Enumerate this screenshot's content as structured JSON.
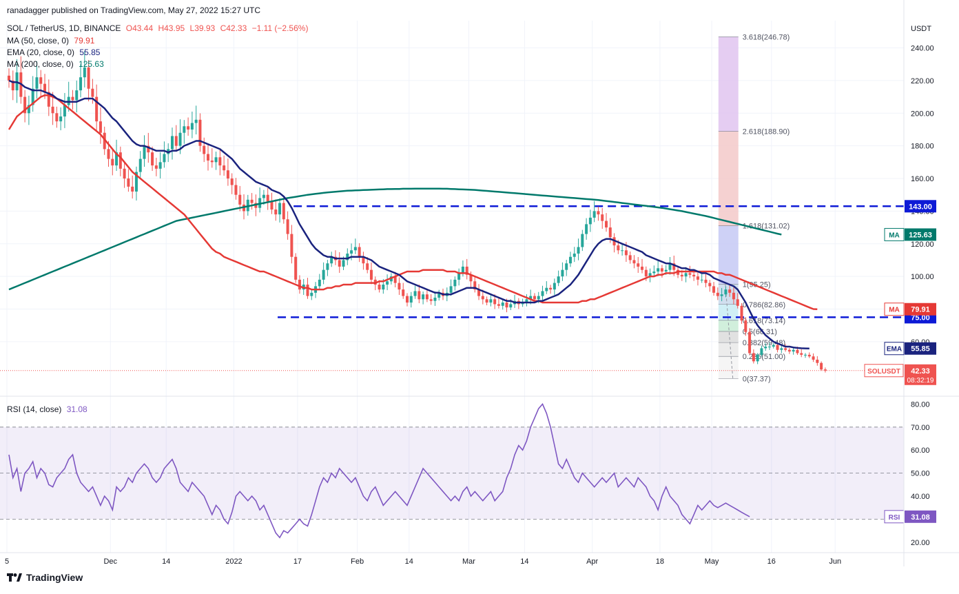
{
  "header": {
    "publisher": "ranadagger published on TradingView.com, May 27, 2022 15:27 UTC",
    "symbol_line": "SOL / TetherUS, 1D, BINANCE",
    "ohlc": {
      "o": "O43.44",
      "h": "H43.95",
      "l": "L39.93",
      "c": "C42.33",
      "chg": "−1.11 (−2.56%)"
    }
  },
  "legends": [
    {
      "label": "MA (50, close, 0)",
      "value": "79.91",
      "color": "#e53935"
    },
    {
      "label": "EMA (20, close, 0)",
      "value": "55.85",
      "color": "#1a237e"
    },
    {
      "label": "MA (200, close, 0)",
      "value": "125.63",
      "color": "#00796b"
    }
  ],
  "rsi_legend": {
    "label": "RSI (14, close)",
    "value": "31.08",
    "color": "#7e57c2"
  },
  "brand": "TradingView",
  "colors": {
    "up": "#26a69a",
    "down": "#ef5350",
    "ma50": "#e53935",
    "ema20": "#1a237e",
    "ma200": "#00796b",
    "rsi": "#7e57c2",
    "level": "#0d1ad6"
  },
  "chart_data": {
    "type": "candlestick",
    "currency": "USDT",
    "y_ticks": [
      60,
      80,
      100,
      120,
      140,
      160,
      180,
      200,
      220,
      240
    ],
    "y_tick_labels": [
      "60.00",
      "80.00",
      "100.00",
      "120.00",
      "140.00",
      "160.00",
      "180.00",
      "200.00",
      "220.00",
      "240.00"
    ],
    "x_ticks": [
      {
        "d": 0,
        "label": "5"
      },
      {
        "d": 26,
        "label": "Dec"
      },
      {
        "d": 40,
        "label": "14"
      },
      {
        "d": 57,
        "label": "2022"
      },
      {
        "d": 73,
        "label": "17"
      },
      {
        "d": 88,
        "label": "Feb"
      },
      {
        "d": 101,
        "label": "14"
      },
      {
        "d": 116,
        "label": "Mar"
      },
      {
        "d": 130,
        "label": "14"
      },
      {
        "d": 147,
        "label": "Apr"
      },
      {
        "d": 164,
        "label": "18"
      },
      {
        "d": 177,
        "label": "May"
      },
      {
        "d": 192,
        "label": "16"
      },
      {
        "d": 208,
        "label": "Jun"
      }
    ],
    "horizontal_levels": [
      {
        "value": 143.0,
        "label": "143.00",
        "from_day": 72
      },
      {
        "value": 75.0,
        "label": "75.00",
        "from_day": 68
      }
    ],
    "indicator_tags": [
      {
        "name": "MA",
        "value": 125.63,
        "label": "125.63"
      },
      {
        "name": "MA",
        "value": 79.91,
        "label": "79.91"
      },
      {
        "name": "EMA",
        "value": 55.85,
        "label": "55.85"
      }
    ],
    "last_price": {
      "symbol": "SOLUSDT",
      "value": 42.33,
      "label": "42.33",
      "countdown": "08:32:19"
    },
    "fibonacci": [
      {
        "label": "3.618(246.78)",
        "value": 246.78,
        "fill": "#e1c4f0"
      },
      {
        "label": "2.618(188.90)",
        "value": 188.9,
        "fill": "#f3c9c9"
      },
      {
        "label": "1.618(131.02)",
        "value": 131.02,
        "fill": "#c5c9f5"
      },
      {
        "label": "1(95.25)",
        "value": 95.25,
        "fill": "#c9d9ec"
      },
      {
        "label": "0.786(82.86)",
        "value": 82.86,
        "fill": "#c8ecf5"
      },
      {
        "label": "0.618(73.14)",
        "value": 73.14,
        "fill": "#c9ecd6"
      },
      {
        "label": "0.5(66.31)",
        "value": 66.31,
        "fill": "#dcdcdc"
      },
      {
        "label": "0.382(59.48)",
        "value": 59.48,
        "fill": "#e9e9e9"
      },
      {
        "label": "0.236(51.00)",
        "value": 51.0,
        "fill": "#f3f3f3"
      },
      {
        "label": "0(37.37)",
        "value": 37.37,
        "fill": "#ffffff"
      }
    ],
    "fib_day_range": [
      178,
      183
    ],
    "closes": [
      220,
      214,
      225,
      210,
      200,
      205,
      215,
      222,
      218,
      213,
      204,
      200,
      195,
      198,
      205,
      210,
      208,
      214,
      222,
      228,
      215,
      210,
      195,
      188,
      178,
      172,
      168,
      176,
      166,
      160,
      155,
      152,
      164,
      172,
      180,
      176,
      168,
      166,
      170,
      175,
      178,
      186,
      180,
      188,
      192,
      190,
      194,
      196,
      180,
      175,
      171,
      170,
      173,
      168,
      165,
      160,
      156,
      150,
      144,
      140,
      147,
      145,
      142,
      148,
      150,
      146,
      141,
      138,
      145,
      135,
      126,
      112,
      98,
      92,
      95,
      88,
      90,
      94,
      98,
      104,
      108,
      112,
      110,
      106,
      110,
      114,
      116,
      118,
      112,
      108,
      104,
      98,
      95,
      92,
      95,
      97,
      100,
      96,
      92,
      88,
      84,
      88,
      91,
      86,
      89,
      86,
      85,
      87,
      90,
      88,
      90,
      94,
      98,
      102,
      106,
      101,
      97,
      92,
      88,
      86,
      84,
      86,
      83,
      82,
      84,
      81,
      83,
      85,
      83,
      84,
      86,
      88,
      86,
      88,
      91,
      93,
      92,
      96,
      100,
      104,
      108,
      112,
      114,
      118,
      126,
      132,
      136,
      140,
      138,
      134,
      130,
      124,
      119,
      116,
      116,
      113,
      110,
      108,
      106,
      104,
      100,
      102,
      103,
      105,
      103,
      104,
      108,
      104,
      101,
      100,
      102,
      101,
      100,
      98,
      98,
      96,
      94,
      90,
      88,
      89,
      92,
      90,
      86,
      82,
      73,
      66,
      53,
      48,
      52,
      56,
      57,
      57,
      58,
      55,
      56,
      55,
      54,
      55,
      53,
      52,
      52,
      51,
      49,
      47,
      43,
      42.33
    ],
    "ma50": [
      190,
      194,
      198,
      200,
      202,
      204,
      206,
      208,
      210,
      211,
      211,
      210,
      209,
      207,
      205,
      203,
      201,
      199,
      197,
      195,
      193,
      191,
      189,
      187,
      184,
      181,
      178,
      175,
      173,
      170,
      167,
      164,
      162,
      160,
      158,
      156,
      154,
      152,
      150,
      148,
      146,
      144,
      142,
      140,
      138,
      135,
      132,
      129,
      126,
      123,
      120,
      117,
      115,
      114,
      112,
      111,
      110,
      109,
      108,
      107,
      106,
      105,
      104,
      103,
      103,
      102,
      101,
      100,
      99,
      98,
      97,
      96,
      95,
      94,
      93,
      93,
      92,
      92,
      92,
      92,
      93,
      93,
      94,
      94,
      95,
      95,
      95,
      96,
      96,
      96,
      96,
      96,
      96,
      97,
      97,
      98,
      99,
      100,
      101,
      102,
      103,
      103,
      103,
      103,
      104,
      104,
      104,
      104,
      104,
      104,
      103,
      103,
      103,
      102,
      102,
      102,
      101,
      100,
      99,
      98,
      97,
      96,
      95,
      94,
      93,
      92,
      91,
      90,
      89,
      88,
      87,
      86,
      85,
      85,
      84,
      84,
      84,
      84,
      84,
      84,
      84,
      84,
      84,
      84,
      85,
      85,
      86,
      86,
      87,
      88,
      89,
      90,
      91,
      92,
      93,
      94,
      95,
      96,
      97,
      98,
      99,
      100,
      100,
      101,
      101,
      102,
      102,
      102,
      103,
      103,
      103,
      103,
      103,
      103,
      103,
      103,
      103,
      103,
      102,
      102,
      101,
      101,
      100,
      99,
      98,
      97,
      96,
      95,
      94,
      93,
      92,
      91,
      90,
      89,
      88,
      87,
      86,
      85,
      84,
      83,
      82,
      81,
      80,
      79.91
    ],
    "ema20": [
      220,
      219,
      219,
      218,
      216,
      215,
      214,
      214,
      214,
      213,
      212,
      211,
      209,
      208,
      207,
      207,
      207,
      207,
      208,
      209,
      209,
      209,
      207,
      205,
      203,
      200,
      197,
      195,
      192,
      189,
      186,
      183,
      181,
      180,
      180,
      179,
      178,
      177,
      177,
      177,
      176,
      177,
      177,
      178,
      180,
      181,
      182,
      183,
      183,
      182,
      181,
      180,
      179,
      178,
      176,
      174,
      172,
      169,
      166,
      164,
      162,
      160,
      158,
      157,
      156,
      155,
      153,
      152,
      151,
      149,
      146,
      142,
      137,
      132,
      128,
      124,
      120,
      117,
      115,
      113,
      112,
      112,
      111,
      111,
      111,
      111,
      112,
      112,
      112,
      112,
      111,
      110,
      108,
      106,
      105,
      104,
      103,
      102,
      101,
      99,
      97,
      96,
      95,
      94,
      93,
      92,
      91,
      90,
      90,
      89,
      89,
      89,
      90,
      91,
      92,
      93,
      93,
      93,
      92,
      91,
      90,
      89,
      88,
      87,
      86,
      85,
      85,
      84,
      84,
      84,
      84,
      84,
      84,
      85,
      85,
      86,
      87,
      88,
      89,
      91,
      93,
      95,
      98,
      101,
      105,
      109,
      113,
      117,
      120,
      122,
      123,
      123,
      122,
      121,
      120,
      119,
      118,
      117,
      116,
      115,
      113,
      112,
      111,
      110,
      109,
      108,
      108,
      107,
      106,
      105,
      105,
      104,
      104,
      103,
      102,
      102,
      101,
      99,
      98,
      97,
      96,
      95,
      94,
      92,
      88,
      84,
      79,
      74,
      70,
      67,
      64,
      62,
      60,
      59,
      58,
      57,
      57,
      56.5,
      56.2,
      56.0,
      55.9,
      55.85
    ],
    "ma200": [
      92,
      93,
      94,
      95,
      96,
      97,
      98,
      99,
      100,
      101,
      102,
      103,
      104,
      105,
      106,
      107,
      108,
      109,
      110,
      111,
      112,
      113,
      114,
      115,
      116,
      117,
      118,
      119,
      120,
      121,
      122,
      123,
      124,
      125,
      126,
      127,
      128,
      129,
      130,
      131,
      132,
      133,
      134,
      134.5,
      135,
      135.5,
      136,
      136.5,
      137,
      137.5,
      138,
      138.5,
      139,
      139.5,
      140,
      140.5,
      141,
      141.5,
      142,
      142.5,
      143,
      143.5,
      144,
      144.5,
      145,
      145.5,
      146,
      146.5,
      147,
      147.5,
      148,
      148.4,
      148.8,
      149.2,
      149.6,
      150,
      150.3,
      150.6,
      150.9,
      151.2,
      151.5,
      151.7,
      151.9,
      152.1,
      152.3,
      152.5,
      152.6,
      152.7,
      152.8,
      152.9,
      153,
      153.1,
      153.2,
      153.3,
      153.4,
      153.5,
      153.5,
      153.6,
      153.6,
      153.7,
      153.7,
      153.7,
      153.8,
      153.8,
      153.8,
      153.8,
      153.8,
      153.8,
      153.8,
      153.7,
      153.7,
      153.6,
      153.5,
      153.4,
      153.3,
      153.2,
      153.1,
      153,
      152.8,
      152.6,
      152.4,
      152.2,
      152,
      151.8,
      151.6,
      151.4,
      151.2,
      151,
      150.8,
      150.6,
      150.4,
      150.2,
      150,
      149.8,
      149.6,
      149.4,
      149.2,
      149,
      148.8,
      148.6,
      148.4,
      148.2,
      148,
      147.8,
      147.6,
      147.4,
      147.2,
      147,
      146.8,
      146.5,
      146.2,
      145.9,
      145.6,
      145.3,
      145,
      144.7,
      144.4,
      144.1,
      143.8,
      143.5,
      143.2,
      142.9,
      142.6,
      142.3,
      142,
      141.6,
      141.2,
      140.8,
      140.4,
      140,
      139.5,
      139,
      138.5,
      138,
      137.5,
      137,
      136.4,
      135.8,
      135.2,
      134.6,
      134,
      133.4,
      132.8,
      132.2,
      131.6,
      131,
      130.4,
      129.8,
      129.2,
      128.6,
      128,
      127.4,
      126.8,
      126.2,
      125.63
    ],
    "rsi": {
      "y_ticks": [
        20,
        30,
        40,
        50,
        60,
        70,
        80
      ],
      "y_tick_labels": [
        "20.00",
        "30.00",
        "40.00",
        "50.00",
        "60.00",
        "70.00",
        "80.00"
      ],
      "band": [
        30,
        70
      ],
      "last": 31.08,
      "values": [
        58,
        48,
        52,
        42,
        50,
        52,
        55,
        48,
        52,
        50,
        45,
        44,
        48,
        50,
        52,
        56,
        58,
        50,
        46,
        44,
        42,
        44,
        40,
        36,
        40,
        38,
        34,
        44,
        42,
        44,
        48,
        46,
        50,
        52,
        54,
        52,
        48,
        46,
        48,
        52,
        54,
        56,
        52,
        46,
        44,
        42,
        46,
        44,
        42,
        40,
        36,
        32,
        36,
        34,
        30,
        28,
        33,
        40,
        42,
        40,
        38,
        40,
        38,
        34,
        36,
        32,
        28,
        24,
        22,
        25,
        24,
        26,
        28,
        30,
        28,
        27,
        32,
        38,
        44,
        48,
        46,
        50,
        48,
        52,
        50,
        48,
        46,
        48,
        44,
        40,
        38,
        42,
        44,
        40,
        36,
        38,
        40,
        42,
        40,
        38,
        36,
        40,
        44,
        48,
        52,
        50,
        48,
        46,
        44,
        42,
        40,
        38,
        40,
        38,
        42,
        44,
        40,
        42,
        40,
        38,
        40,
        42,
        38,
        40,
        42,
        48,
        52,
        58,
        62,
        60,
        64,
        70,
        74,
        78,
        80,
        76,
        70,
        62,
        54,
        52,
        56,
        52,
        48,
        46,
        50,
        48,
        46,
        44,
        46,
        48,
        46,
        48,
        50,
        44,
        46,
        48,
        46,
        44,
        48,
        46,
        44,
        40,
        38,
        34,
        40,
        44,
        40,
        38,
        36,
        32,
        30,
        28,
        32,
        36,
        34,
        36,
        38,
        36,
        35,
        36,
        37,
        36,
        35,
        34,
        33,
        32,
        31.08
      ]
    }
  }
}
